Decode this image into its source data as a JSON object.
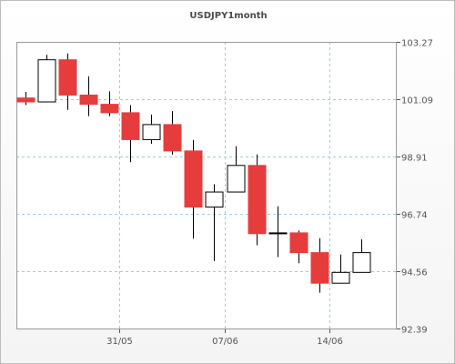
{
  "chart_data": {
    "type": "candlestick",
    "title": "USDJPY1month",
    "ylim": [
      92.39,
      103.27
    ],
    "y_ticks": [
      "92.39",
      "94.56",
      "96.74",
      "98.91",
      "101.09",
      "103.27"
    ],
    "x_tick_labels": [
      {
        "label": "31/05",
        "slot": 4.5
      },
      {
        "label": "07/06",
        "slot": 9.5
      },
      {
        "label": "14/06",
        "slot": 14.5
      }
    ],
    "grid": true,
    "colors": {
      "up": "#ffffff",
      "down": "#e63c3c",
      "outline": "#000000",
      "grid": "#9ecfd6"
    },
    "candles": [
      {
        "o": 101.14,
        "h": 101.37,
        "l": 100.87,
        "c": 100.99
      },
      {
        "o": 100.99,
        "h": 102.78,
        "l": 100.99,
        "c": 102.59
      },
      {
        "o": 102.59,
        "h": 102.83,
        "l": 100.69,
        "c": 101.25
      },
      {
        "o": 101.25,
        "h": 101.96,
        "l": 100.45,
        "c": 100.9
      },
      {
        "o": 100.9,
        "h": 101.39,
        "l": 100.45,
        "c": 100.58
      },
      {
        "o": 100.58,
        "h": 100.87,
        "l": 98.7,
        "c": 99.56
      },
      {
        "o": 99.56,
        "h": 100.51,
        "l": 99.4,
        "c": 100.13
      },
      {
        "o": 100.13,
        "h": 100.64,
        "l": 98.99,
        "c": 99.13
      },
      {
        "o": 99.13,
        "h": 99.55,
        "l": 95.8,
        "c": 97.0
      },
      {
        "o": 97.0,
        "h": 97.87,
        "l": 94.95,
        "c": 97.57
      },
      {
        "o": 97.57,
        "h": 99.31,
        "l": 97.57,
        "c": 98.58
      },
      {
        "o": 98.58,
        "h": 99.0,
        "l": 95.55,
        "c": 95.99
      },
      {
        "o": 95.99,
        "h": 97.03,
        "l": 95.1,
        "c": 96.02
      },
      {
        "o": 96.02,
        "h": 96.11,
        "l": 94.87,
        "c": 95.27
      },
      {
        "o": 95.27,
        "h": 95.82,
        "l": 93.75,
        "c": 94.11
      },
      {
        "o": 94.11,
        "h": 95.2,
        "l": 94.11,
        "c": 94.52
      },
      {
        "o": 94.52,
        "h": 95.78,
        "l": 94.52,
        "c": 95.27
      }
    ]
  }
}
